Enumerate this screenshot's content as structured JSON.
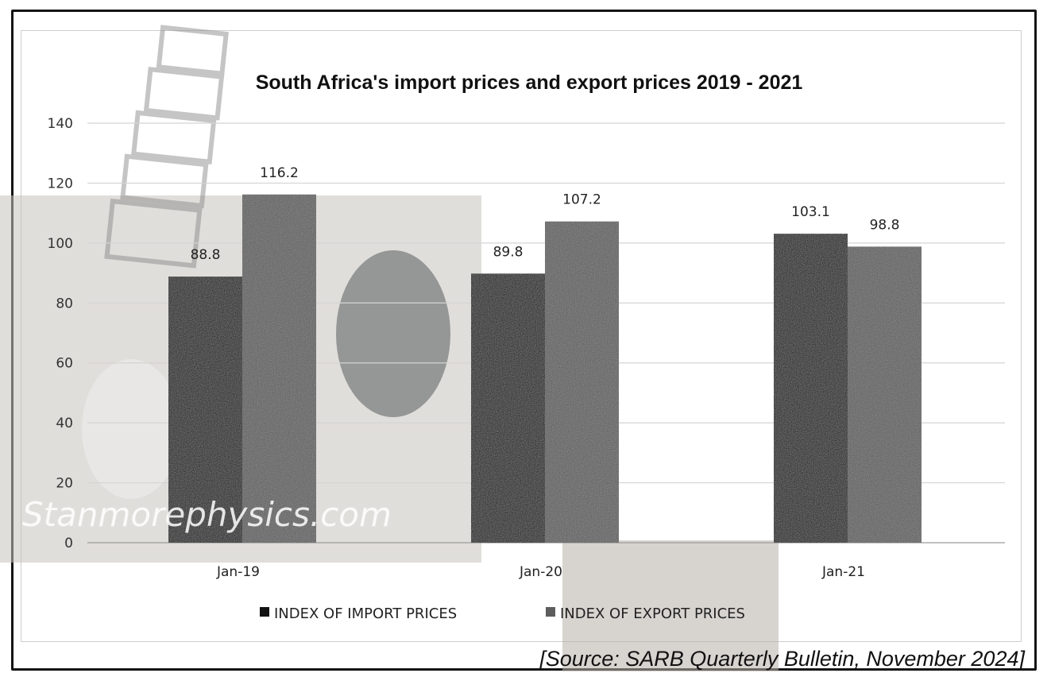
{
  "chart_data": {
    "type": "bar",
    "title": "South Africa's import prices and export prices 2019 - 2021",
    "categories": [
      "Jan-19",
      "Jan-20",
      "Jan-21"
    ],
    "series": [
      {
        "name": "INDEX OF IMPORT PRICES",
        "values": [
          88.8,
          89.8,
          103.1
        ],
        "color": "#111111"
      },
      {
        "name": "INDEX OF EXPORT PRICES",
        "values": [
          116.2,
          107.2,
          98.8
        ],
        "color": "#5a5a5a"
      }
    ],
    "data_labels": [
      [
        "88.8",
        "89.8",
        "103.1"
      ],
      [
        "116.2",
        "107.2",
        "98.8"
      ]
    ],
    "ylim": [
      0,
      140
    ],
    "yticks": [
      "0",
      "20",
      "40",
      "60",
      "80",
      "100",
      "120",
      "140"
    ],
    "grid": true,
    "legend_position": "bottom",
    "xlabel": "",
    "ylabel": ""
  },
  "watermark": "Stanmorephysics.com",
  "source": "[Source: SARB Quarterly Bulletin,  November 2024]"
}
